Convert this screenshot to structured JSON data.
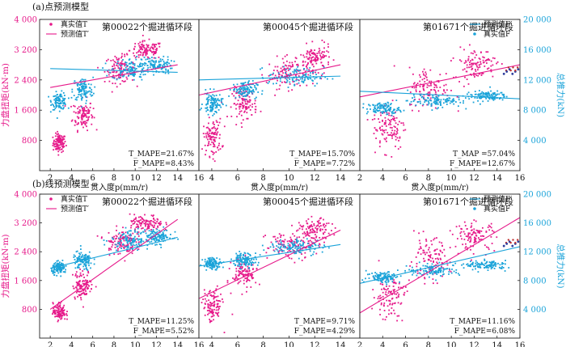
{
  "colors": {
    "torque": "#e6198a",
    "thrust": "#1aa3d9",
    "axis": "#222222",
    "thrust_extra": "#2e3f9e",
    "torque_extra": "#c03030"
  },
  "rows": [
    {
      "title": "(a)点预测模型"
    },
    {
      "title": "(b)线预测模型"
    }
  ],
  "axes": {
    "xlabel": "贯入度p(mm/r)",
    "ylabel_left": "力盘扭矩(kN·m)",
    "ylabel_right": "总推力(kN)",
    "x_ticks": [
      "2",
      "4",
      "6",
      "8",
      "10",
      "12",
      "14",
      "16"
    ],
    "x_ticks_mid": [
      "4",
      "6",
      "8",
      "10",
      "12",
      "14"
    ],
    "y_left_ticks": [
      "800",
      "1 600",
      "2 400",
      "3 200",
      "4 000"
    ],
    "y_right_ticks": [
      "4 000",
      "8 000",
      "12 000",
      "16 000",
      "20 000"
    ]
  },
  "legend": {
    "true_T": "真实值T",
    "pred_T": "预测值T′",
    "pred_F": "预测值F′",
    "true_F": "真实值F"
  },
  "chart_data": [
    {
      "type": "scatter",
      "row": "a",
      "panel": "第00022个掘进循环段",
      "xlim": [
        1,
        16
      ],
      "ylim_left": [
        0,
        4000
      ],
      "ylim_right": [
        0,
        20000
      ],
      "t_mape": "T_MAPE=21.67%",
      "f_mape": "F_MAPE=8.43%",
      "series": [
        {
          "name": "真实值T",
          "kind": "scatter",
          "clusters": [
            [
              2.8,
              750,
              0.5,
              150
            ],
            [
              5.0,
              1500,
              0.8,
              250
            ],
            [
              8.5,
              2700,
              1.2,
              220
            ],
            [
              11.0,
              3200,
              1.3,
              150
            ]
          ]
        },
        {
          "name": "预测值T′",
          "kind": "line",
          "x": [
            2,
            14
          ],
          "y": [
            2200,
            2800
          ]
        },
        {
          "name": "真实值F",
          "kind": "scatter",
          "clusters": [
            [
              2.8,
              9300,
              0.6,
              700
            ],
            [
              5.0,
              10800,
              0.8,
              1000
            ],
            [
              9.5,
              13500,
              1.5,
              900
            ],
            [
              12.0,
              14000,
              1.2,
              700
            ]
          ]
        },
        {
          "name": "预测值F′",
          "kind": "line",
          "x": [
            2,
            14
          ],
          "y": [
            13500,
            13000
          ]
        }
      ]
    },
    {
      "type": "scatter",
      "row": "a",
      "panel": "第00045个掘进循环段",
      "xlim": [
        3,
        15.5
      ],
      "ylim_left": [
        0,
        4000
      ],
      "ylim_right": [
        0,
        20000
      ],
      "t_mape": "T_MAPE=15.70%",
      "f_mape": "F_MAPE=7.72%",
      "series": [
        {
          "name": "真实值T",
          "kind": "scatter",
          "clusters": [
            [
              4.0,
              900,
              0.6,
              300
            ],
            [
              6.5,
              1800,
              0.8,
              250
            ],
            [
              10.0,
              2600,
              1.5,
              250
            ],
            [
              12.0,
              3000,
              1.0,
              200
            ]
          ]
        },
        {
          "name": "预测值T′",
          "kind": "line",
          "x": [
            3,
            14
          ],
          "y": [
            2000,
            2800
          ]
        },
        {
          "name": "真实值F",
          "kind": "scatter",
          "clusters": [
            [
              4.0,
              9000,
              0.6,
              900
            ],
            [
              6.5,
              10800,
              0.8,
              700
            ],
            [
              10.5,
              12500,
              1.8,
              800
            ]
          ]
        },
        {
          "name": "预测值F′",
          "kind": "line",
          "x": [
            3,
            14
          ],
          "y": [
            12000,
            12500
          ]
        }
      ]
    },
    {
      "type": "scatter",
      "row": "a",
      "panel": "第01671个掘进循环段",
      "xlim": [
        2,
        16
      ],
      "ylim_left": [
        0,
        4000
      ],
      "ylim_right": [
        0,
        20000
      ],
      "t_mape": "T_MAP =57.04%",
      "f_mape": "F_MAPE=12.67%",
      "series": [
        {
          "name": "真实值T",
          "kind": "scatter",
          "clusters": [
            [
              4.5,
              1200,
              1.2,
              400
            ],
            [
              8.0,
              2200,
              1.5,
              350
            ],
            [
              12.0,
              2850,
              1.5,
              250
            ]
          ]
        },
        {
          "name": "预测值T′",
          "kind": "line",
          "x": [
            2,
            16
          ],
          "y": [
            1950,
            2800
          ]
        },
        {
          "name": "真实值F",
          "kind": "scatter",
          "clusters": [
            [
              4.0,
              8300,
              1.2,
              500
            ],
            [
              8.5,
              9300,
              2.0,
              500
            ],
            [
              13.0,
              10000,
              1.5,
              400
            ]
          ]
        },
        {
          "name": "预测值F′",
          "kind": "line",
          "x": [
            2,
            16
          ],
          "y": [
            10500,
            9500
          ]
        }
      ]
    },
    {
      "type": "scatter",
      "row": "b",
      "panel": "第00022个掘进循环段",
      "xlim": [
        1,
        16
      ],
      "ylim_left": [
        0,
        4000
      ],
      "ylim_right": [
        0,
        20000
      ],
      "t_mape": "T_MAPE=11.25%",
      "f_mape": "F_MAPE=5.52%",
      "series": [
        {
          "name": "真实值T",
          "kind": "scatter",
          "clusters": [
            [
              2.8,
              750,
              0.5,
              150
            ],
            [
              5.0,
              1500,
              0.8,
              250
            ],
            [
              8.5,
              2700,
              1.2,
              220
            ],
            [
              11.0,
              3200,
              1.3,
              150
            ]
          ]
        },
        {
          "name": "预测值T′",
          "kind": "line",
          "x": [
            2,
            14
          ],
          "y": [
            800,
            3300
          ]
        },
        {
          "name": "真实值F",
          "kind": "scatter",
          "clusters": [
            [
              2.8,
              9800,
              0.6,
              500
            ],
            [
              5.0,
              10800,
              0.8,
              800
            ],
            [
              9.5,
              13800,
              1.5,
              800
            ],
            [
              12.0,
              14200,
              1.2,
              600
            ]
          ]
        },
        {
          "name": "预测值F′",
          "kind": "line",
          "x": [
            2,
            14
          ],
          "y": [
            9700,
            14000
          ]
        }
      ]
    },
    {
      "type": "scatter",
      "row": "b",
      "panel": "第00045个掘进循环段",
      "xlim": [
        3,
        15.5
      ],
      "ylim_left": [
        0,
        4000
      ],
      "ylim_right": [
        0,
        20000
      ],
      "t_mape": "T_MAPE=9.71%",
      "f_mape": "F_MAPE=4.29%",
      "series": [
        {
          "name": "真实值T",
          "kind": "scatter",
          "clusters": [
            [
              4.0,
              900,
              0.6,
              300
            ],
            [
              6.5,
              1800,
              0.8,
              250
            ],
            [
              10.0,
              2600,
              1.5,
              250
            ],
            [
              12.0,
              3000,
              1.0,
              200
            ]
          ]
        },
        {
          "name": "预测值T′",
          "kind": "line",
          "x": [
            3,
            14
          ],
          "y": [
            1100,
            3000
          ]
        },
        {
          "name": "真实值F",
          "kind": "scatter",
          "clusters": [
            [
              4.0,
              10500,
              0.6,
              500
            ],
            [
              6.5,
              11000,
              0.8,
              600
            ],
            [
              10.5,
              12800,
              1.8,
              700
            ]
          ]
        },
        {
          "name": "预测值F′",
          "kind": "line",
          "x": [
            3,
            14
          ],
          "y": [
            10000,
            13000
          ]
        }
      ]
    },
    {
      "type": "scatter",
      "row": "b",
      "panel": "第01671个掘进循环段",
      "xlim": [
        2,
        16
      ],
      "ylim_left": [
        0,
        4000
      ],
      "ylim_right": [
        0,
        20000
      ],
      "t_mape": "T_MAPE=11.16%",
      "f_mape": "F_MAPE=6.08%",
      "series": [
        {
          "name": "真实值T",
          "kind": "scatter",
          "clusters": [
            [
              4.5,
              1200,
              1.2,
              400
            ],
            [
              8.0,
              2200,
              1.5,
              350
            ],
            [
              12.0,
              2850,
              1.5,
              250
            ]
          ]
        },
        {
          "name": "预测值T′",
          "kind": "line",
          "x": [
            2,
            16
          ],
          "y": [
            700,
            3350
          ]
        },
        {
          "name": "真实值F",
          "kind": "scatter",
          "clusters": [
            [
              4.0,
              8600,
              1.2,
              500
            ],
            [
              8.5,
              9500,
              2.0,
              500
            ],
            [
              13.0,
              10200,
              1.5,
              400
            ]
          ]
        },
        {
          "name": "预测值F′",
          "kind": "line",
          "x": [
            2,
            16
          ],
          "y": [
            7600,
            12700
          ]
        }
      ]
    }
  ]
}
